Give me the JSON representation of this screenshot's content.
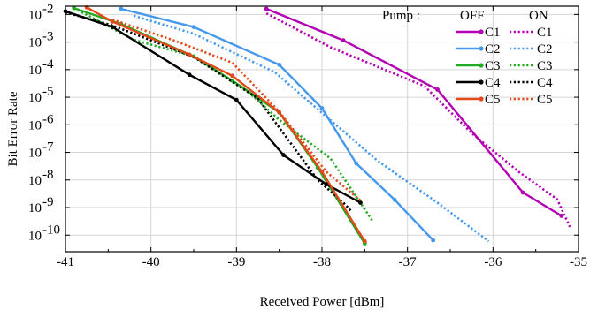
{
  "chart_data": {
    "type": "line",
    "xlabel": "Received Power [dBm]",
    "ylabel": "Bit Error Rate",
    "xlim": [
      -41,
      -35
    ],
    "ylim_exponent": [
      -10.6,
      -1.7
    ],
    "y_scale": "log",
    "xticks": [
      "-41",
      "-40",
      "-39",
      "-38",
      "-37",
      "-36",
      "-35"
    ],
    "yticks": [
      {
        "exp": -2,
        "label": "10",
        "sup": "-2"
      },
      {
        "exp": -3,
        "label": "10",
        "sup": "-3"
      },
      {
        "exp": -4,
        "label": "10",
        "sup": "-4"
      },
      {
        "exp": -5,
        "label": "10",
        "sup": "-5"
      },
      {
        "exp": -6,
        "label": "10",
        "sup": "-6"
      },
      {
        "exp": -7,
        "label": "10",
        "sup": "-7"
      },
      {
        "exp": -8,
        "label": "10",
        "sup": "-8"
      },
      {
        "exp": -9,
        "label": "10",
        "sup": "-9"
      },
      {
        "exp": -10,
        "label": "10",
        "sup": "-10"
      }
    ],
    "grid": true,
    "legend": {
      "placement": "top-right",
      "pump_label": "Pump :",
      "off_label": "OFF",
      "on_label": "ON"
    },
    "series": [
      {
        "name": "C1",
        "pump": "OFF",
        "color": "#b400b4",
        "style": "solid",
        "x": [
          -38.65,
          -37.75,
          -36.65,
          -35.65,
          -35.2
        ],
        "y": [
          0.016,
          0.00115,
          1.9e-05,
          3.5e-09,
          5e-10
        ]
      },
      {
        "name": "C1",
        "pump": "ON",
        "color": "#b400b4",
        "style": "dotted",
        "x": [
          -38.65,
          -37.9,
          -36.8,
          -36.25,
          -35.7,
          -35.25,
          -35.1
        ],
        "y": [
          0.011,
          0.00065,
          2.5e-05,
          5e-07,
          2e-08,
          2e-09,
          2e-10
        ]
      },
      {
        "name": "C2",
        "pump": "OFF",
        "color": "#4499ee",
        "style": "solid",
        "x": [
          -40.35,
          -39.5,
          -38.5,
          -38.0,
          -37.6,
          -37.15,
          -36.7
        ],
        "y": [
          0.016,
          0.0035,
          0.00015,
          4e-06,
          4e-08,
          1.9e-09,
          6.5e-11
        ]
      },
      {
        "name": "C2",
        "pump": "ON",
        "color": "#4499ee",
        "style": "dotted",
        "x": [
          -40.2,
          -39.5,
          -38.55,
          -37.95,
          -37.35,
          -36.65,
          -36.05
        ],
        "y": [
          0.009,
          0.002,
          8e-05,
          2e-06,
          5e-08,
          1.5e-09,
          6e-11
        ]
      },
      {
        "name": "C3",
        "pump": "OFF",
        "color": "#22aa22",
        "style": "solid",
        "x": [
          -40.9,
          -40.35,
          -39.5,
          -39.05,
          -38.5,
          -38.05,
          -37.5
        ],
        "y": [
          0.017,
          0.0045,
          0.0003,
          4e-05,
          2.8e-06,
          2.8e-08,
          5e-11
        ]
      },
      {
        "name": "C3",
        "pump": "ON",
        "color": "#22aa22",
        "style": "dotted",
        "x": [
          -40.9,
          -40.2,
          -39.5,
          -38.9,
          -38.5,
          -37.9,
          -37.4
        ],
        "y": [
          0.017,
          0.0012,
          0.0003,
          2e-05,
          1.5e-06,
          6e-08,
          3e-10
        ]
      },
      {
        "name": "C4",
        "pump": "OFF",
        "color": "#000000",
        "style": "solid",
        "x": [
          -41,
          -40.45,
          -39.55,
          -39.0,
          -38.45,
          -37.95,
          -37.55
        ],
        "y": [
          0.013,
          0.0035,
          6.5e-05,
          8e-06,
          8e-08,
          7e-09,
          1.5e-09
        ]
      },
      {
        "name": "C4",
        "pump": "ON",
        "color": "#000000",
        "style": "dotted",
        "x": [
          -41,
          -40.45,
          -39.5,
          -38.75,
          -38.05,
          -37.75,
          -37.65
        ],
        "y": [
          0.012,
          0.004,
          0.00029,
          9e-06,
          1e-08,
          1.5e-09,
          7e-10
        ]
      },
      {
        "name": "C5",
        "pump": "OFF",
        "color": "#e24a1a",
        "style": "solid",
        "x": [
          -40.75,
          -40.45,
          -39.55,
          -39.05,
          -38.5,
          -38.0,
          -37.5
        ],
        "y": [
          0.018,
          0.0055,
          0.00035,
          6e-05,
          2.8e-06,
          2e-08,
          6e-11
        ]
      },
      {
        "name": "C5",
        "pump": "ON",
        "color": "#e24a1a",
        "style": "dotted",
        "x": [
          -40.45,
          -39.75,
          -39.05,
          -38.5,
          -37.95,
          -37.55
        ],
        "y": [
          0.0065,
          0.0012,
          0.00018,
          3e-06,
          2e-08,
          1.8e-09
        ]
      }
    ]
  }
}
